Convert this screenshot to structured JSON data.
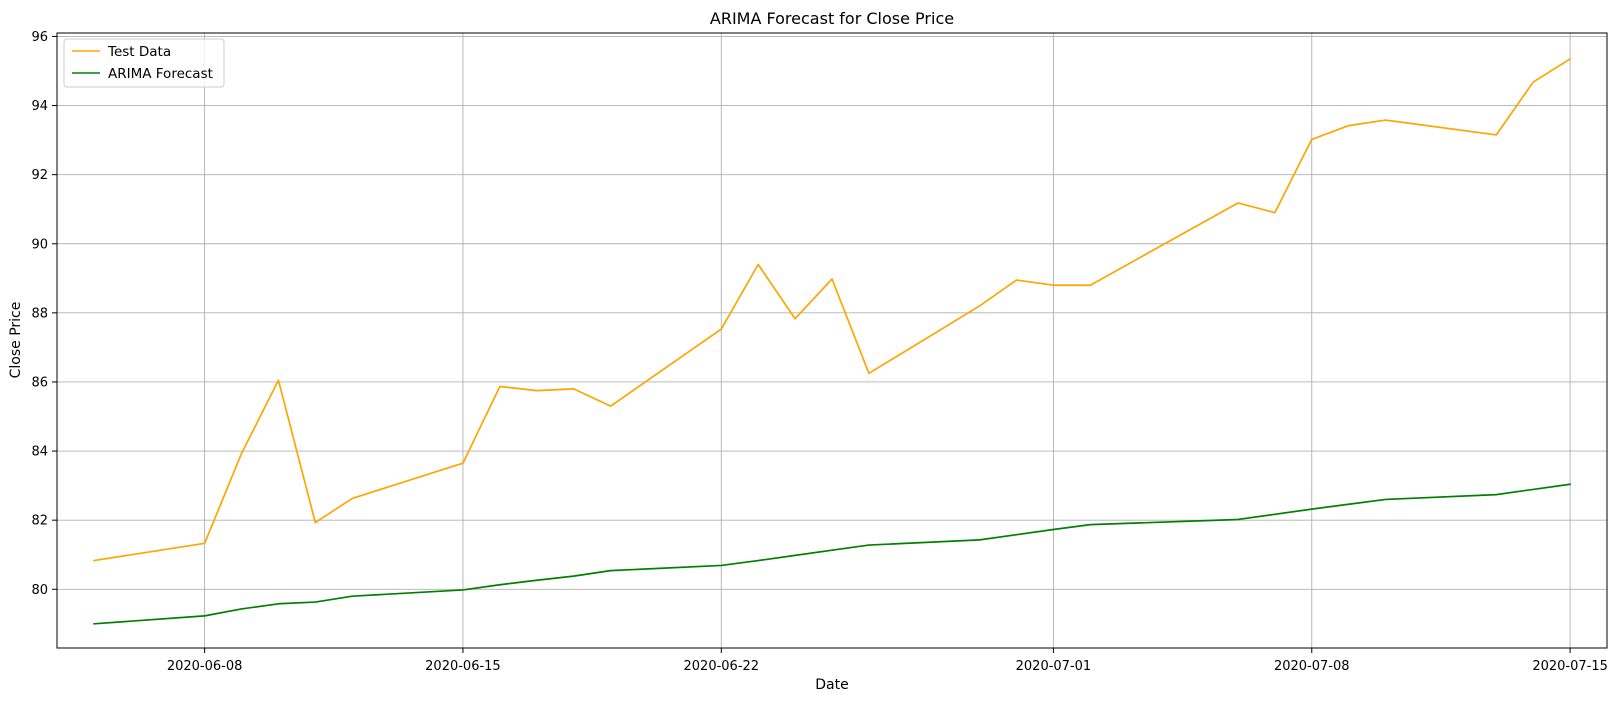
{
  "chart_data": {
    "type": "line",
    "title": "ARIMA Forecast for Close Price",
    "xlabel": "Date",
    "ylabel": "Close Price",
    "x_axis_type": "date",
    "xlim": [
      "2020-06-04",
      "2020-07-16"
    ],
    "ylim": [
      78.3,
      96.1
    ],
    "x_ticks": [
      "2020-06-08",
      "2020-06-15",
      "2020-06-22",
      "2020-07-01",
      "2020-07-08",
      "2020-07-15"
    ],
    "y_ticks": [
      80,
      82,
      84,
      86,
      88,
      90,
      92,
      94,
      96
    ],
    "grid": true,
    "legend_position": "top-left",
    "series": [
      {
        "name": "Test Data",
        "color": "#ffa500",
        "points": [
          [
            "2020-06-05",
            80.83
          ],
          [
            "2020-06-08",
            81.33
          ],
          [
            "2020-06-09",
            83.93
          ],
          [
            "2020-06-10",
            86.05
          ],
          [
            "2020-06-11",
            81.93
          ],
          [
            "2020-06-12",
            82.63
          ],
          [
            "2020-06-15",
            83.65
          ],
          [
            "2020-06-16",
            85.87
          ],
          [
            "2020-06-17",
            85.75
          ],
          [
            "2020-06-18",
            85.8
          ],
          [
            "2020-06-19",
            85.3
          ],
          [
            "2020-06-22",
            87.53
          ],
          [
            "2020-06-23",
            89.4
          ],
          [
            "2020-06-24",
            87.83
          ],
          [
            "2020-06-25",
            88.98
          ],
          [
            "2020-06-26",
            86.25
          ],
          [
            "2020-06-29",
            88.2
          ],
          [
            "2020-06-30",
            88.95
          ],
          [
            "2020-07-01",
            88.8
          ],
          [
            "2020-07-02",
            88.8
          ],
          [
            "2020-07-06",
            91.18
          ],
          [
            "2020-07-07",
            90.9
          ],
          [
            "2020-07-08",
            93.02
          ],
          [
            "2020-07-09",
            93.42
          ],
          [
            "2020-07-10",
            93.58
          ],
          [
            "2020-07-13",
            93.15
          ],
          [
            "2020-07-14",
            94.68
          ],
          [
            "2020-07-15",
            95.35
          ]
        ]
      },
      {
        "name": "ARIMA Forecast",
        "color": "#008000",
        "points": [
          [
            "2020-06-05",
            79.0
          ],
          [
            "2020-06-08",
            79.23
          ],
          [
            "2020-06-09",
            79.43
          ],
          [
            "2020-06-10",
            79.58
          ],
          [
            "2020-06-11",
            79.63
          ],
          [
            "2020-06-12",
            79.8
          ],
          [
            "2020-06-15",
            79.98
          ],
          [
            "2020-06-16",
            80.13
          ],
          [
            "2020-06-17",
            80.26
          ],
          [
            "2020-06-18",
            80.38
          ],
          [
            "2020-06-19",
            80.54
          ],
          [
            "2020-06-22",
            80.69
          ],
          [
            "2020-06-23",
            80.83
          ],
          [
            "2020-06-24",
            80.98
          ],
          [
            "2020-06-25",
            81.13
          ],
          [
            "2020-06-26",
            81.28
          ],
          [
            "2020-06-29",
            81.43
          ],
          [
            "2020-06-30",
            81.58
          ],
          [
            "2020-07-01",
            81.73
          ],
          [
            "2020-07-02",
            81.87
          ],
          [
            "2020-07-06",
            82.02
          ],
          [
            "2020-07-07",
            82.17
          ],
          [
            "2020-07-08",
            82.32
          ],
          [
            "2020-07-09",
            82.46
          ],
          [
            "2020-07-10",
            82.6
          ],
          [
            "2020-07-13",
            82.74
          ],
          [
            "2020-07-14",
            82.89
          ],
          [
            "2020-07-15",
            83.04
          ]
        ]
      }
    ]
  }
}
